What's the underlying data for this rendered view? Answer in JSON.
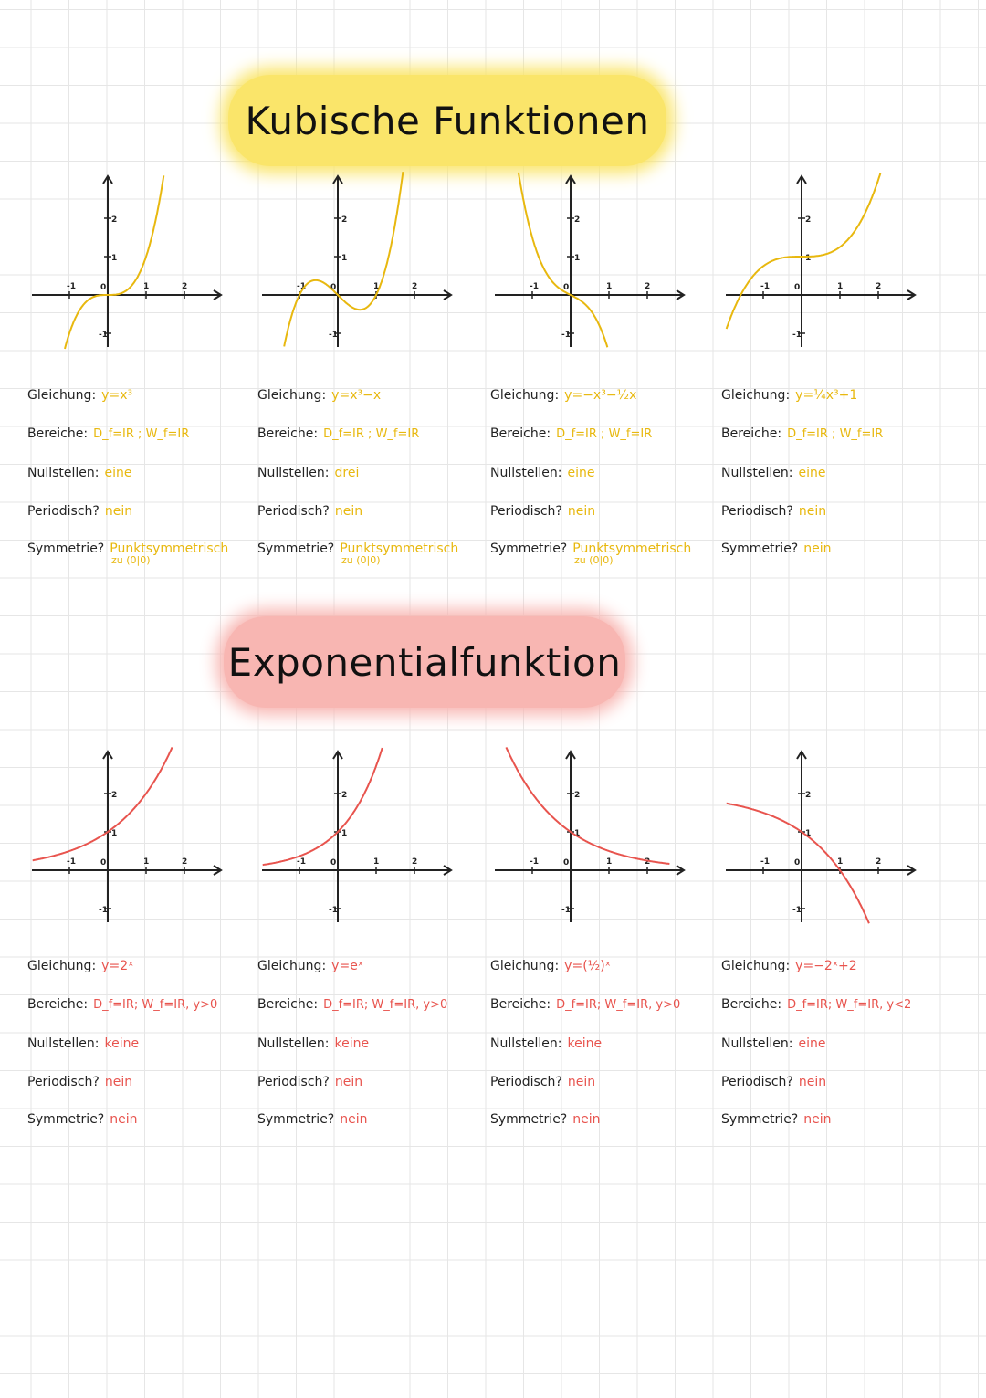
{
  "colors": {
    "cubic": "#e8b80f",
    "exp": "#e8544e",
    "ink": "#222222",
    "title1_bg": "#fae56a",
    "title2_bg": "#f8b6b2"
  },
  "labels": {
    "gleichung": "Gleichung:",
    "bereiche": "Bereiche:",
    "nullstellen": "Nullstellen:",
    "periodisch": "Periodisch?",
    "symmetrie": "Symmetrie?"
  },
  "axis_ticks": {
    "xm1": "-1",
    "x0": "0",
    "x1": "1",
    "x2": "2",
    "y2": "2",
    "y1": "1",
    "ym1": "-1"
  },
  "sections": [
    {
      "title": "Kubische Funktionen",
      "color": "#e8b80f",
      "cards": [
        {
          "gleichung": "y=x³",
          "bereiche": "D_f=IR ; W_f=IR",
          "nullstellen": "eine",
          "periodisch": "nein",
          "symmetrie": "Punktsymmetrisch",
          "symmetrie_sub": "zu (0|0)",
          "curve": "cube"
        },
        {
          "gleichung": "y=x³−x",
          "bereiche": "D_f=IR ; W_f=IR",
          "nullstellen": "drei",
          "periodisch": "nein",
          "symmetrie": "Punktsymmetrisch",
          "symmetrie_sub": "zu (0|0)",
          "curve": "cube_minus_x"
        },
        {
          "gleichung": "y=−x³−½x",
          "bereiche": "D_f=IR ; W_f=IR",
          "nullstellen": "eine",
          "periodisch": "nein",
          "symmetrie": "Punktsymmetrisch",
          "symmetrie_sub": "zu (0|0)",
          "curve": "neg_cube"
        },
        {
          "gleichung": "y=¼x³+1",
          "bereiche": "D_f=IR ; W_f=IR",
          "nullstellen": "eine",
          "periodisch": "nein",
          "symmetrie": "nein",
          "symmetrie_sub": "",
          "curve": "quarter_cube_plus1"
        }
      ]
    },
    {
      "title": "Exponentialfunktion",
      "color": "#e8544e",
      "cards": [
        {
          "gleichung": "y=2ˣ",
          "bereiche": "D_f=IR; W_f=IR, y>0",
          "nullstellen": "keine",
          "periodisch": "nein",
          "symmetrie": "nein",
          "symmetrie_sub": "",
          "curve": "pow2"
        },
        {
          "gleichung": "y=eˣ",
          "bereiche": "D_f=IR; W_f=IR, y>0",
          "nullstellen": "keine",
          "periodisch": "nein",
          "symmetrie": "nein",
          "symmetrie_sub": "",
          "curve": "exp"
        },
        {
          "gleichung": "y=(½)ˣ",
          "bereiche": "D_f=IR; W_f=IR, y>0",
          "nullstellen": "keine",
          "periodisch": "nein",
          "symmetrie": "nein",
          "symmetrie_sub": "",
          "curve": "half_pow"
        },
        {
          "gleichung": "y=−2ˣ+2",
          "bereiche": "D_f=IR; W_f=IR, y<2",
          "nullstellen": "eine",
          "periodisch": "nein",
          "symmetrie": "nein",
          "symmetrie_sub": "",
          "curve": "neg_pow2_plus2"
        }
      ]
    }
  ]
}
